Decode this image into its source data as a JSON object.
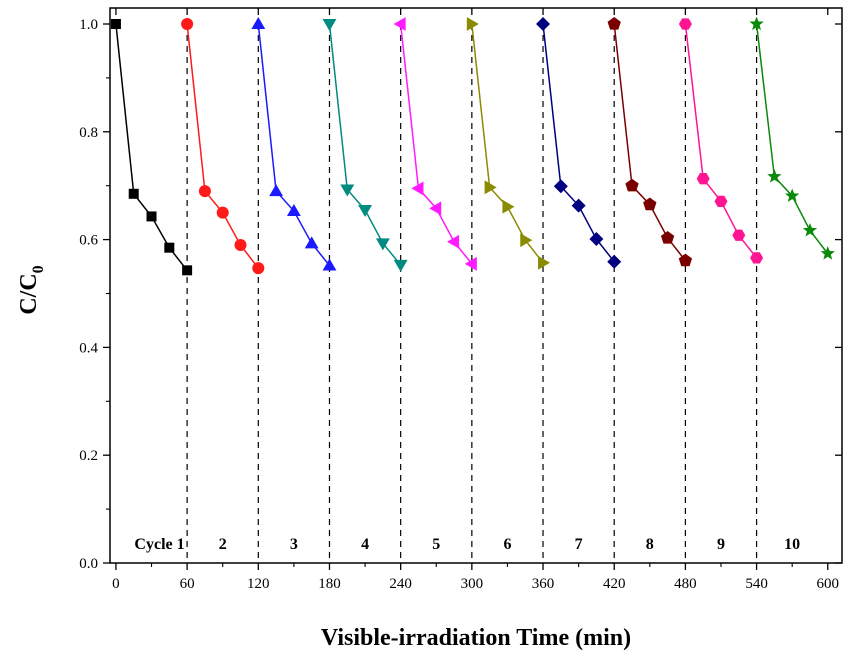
{
  "chart_data": {
    "type": "line",
    "xlabel": "Visible-irradiation Time (min)",
    "ylabel_main": "C/C",
    "ylabel_sub": "0",
    "xlim": [
      -5,
      612
    ],
    "ylim": [
      0,
      1.0
    ],
    "x_ticks": [
      "0",
      "60",
      "120",
      "180",
      "240",
      "300",
      "360",
      "420",
      "480",
      "540",
      "600"
    ],
    "y_ticks": [
      "0.0",
      "0.2",
      "0.4",
      "0.6",
      "0.8",
      "1.0"
    ],
    "cycle_boundaries": [
      60,
      120,
      180,
      240,
      300,
      360,
      420,
      480,
      540
    ],
    "cycle_labels": [
      "Cycle 1",
      "2",
      "3",
      "4",
      "5",
      "6",
      "7",
      "8",
      "9",
      "10"
    ],
    "series": [
      {
        "color": "#000000",
        "marker": "square",
        "x": [
          0,
          15,
          30,
          45,
          60
        ],
        "y": [
          1.0,
          0.685,
          0.643,
          0.585,
          0.543
        ]
      },
      {
        "color": "#ff1a1a",
        "marker": "circle",
        "x": [
          60,
          75,
          90,
          105,
          120
        ],
        "y": [
          1.0,
          0.69,
          0.65,
          0.59,
          0.547
        ]
      },
      {
        "color": "#1a1aff",
        "marker": "triangle-up",
        "x": [
          120,
          135,
          150,
          165,
          180
        ],
        "y": [
          1.0,
          0.69,
          0.653,
          0.593,
          0.552
        ]
      },
      {
        "color": "#008b80",
        "marker": "triangle-down",
        "x": [
          180,
          195,
          210,
          225,
          240
        ],
        "y": [
          1.0,
          0.693,
          0.655,
          0.593,
          0.553
        ]
      },
      {
        "color": "#ff1aff",
        "marker": "triangle-left",
        "x": [
          240,
          255,
          270,
          285,
          300
        ],
        "y": [
          1.0,
          0.695,
          0.658,
          0.596,
          0.555
        ]
      },
      {
        "color": "#8b8b00",
        "marker": "triangle-right",
        "x": [
          300,
          315,
          330,
          345,
          360
        ],
        "y": [
          1.0,
          0.697,
          0.661,
          0.599,
          0.557
        ]
      },
      {
        "color": "#000080",
        "marker": "diamond",
        "x": [
          360,
          375,
          390,
          405,
          420
        ],
        "y": [
          1.0,
          0.699,
          0.663,
          0.601,
          0.559
        ]
      },
      {
        "color": "#7a0000",
        "marker": "pentagon",
        "x": [
          420,
          435,
          450,
          465,
          480
        ],
        "y": [
          1.0,
          0.7,
          0.665,
          0.603,
          0.561
        ]
      },
      {
        "color": "#ff1493",
        "marker": "hexagon",
        "x": [
          480,
          495,
          510,
          525,
          540
        ],
        "y": [
          1.0,
          0.713,
          0.671,
          0.608,
          0.566
        ]
      },
      {
        "color": "#0a8a0a",
        "marker": "star",
        "x": [
          540,
          555,
          570,
          585,
          600
        ],
        "y": [
          1.0,
          0.717,
          0.681,
          0.617,
          0.574
        ]
      }
    ]
  }
}
